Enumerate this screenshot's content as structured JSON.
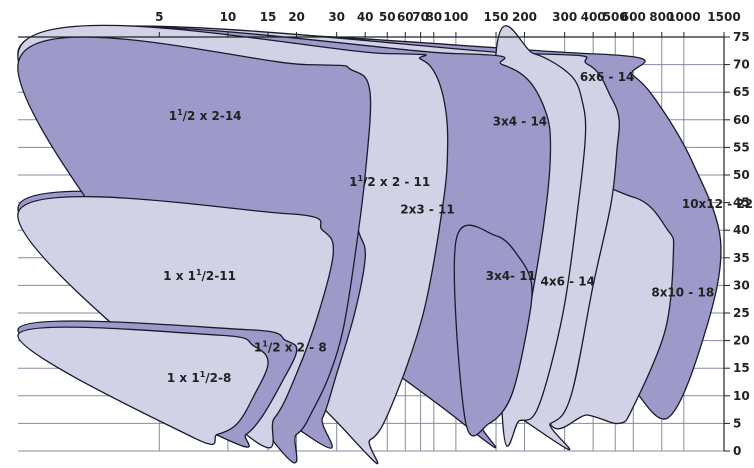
{
  "chart_data": {
    "type": "area",
    "x_axis": {
      "scale": "log",
      "position": "top",
      "ticks": [
        5,
        10,
        15,
        20,
        30,
        40,
        50,
        60,
        70,
        80,
        100,
        150,
        200,
        300,
        400,
        500,
        600,
        800,
        1000,
        1500
      ],
      "tick_labels": [
        "5",
        "10",
        "15",
        "20",
        "30",
        "40",
        "50",
        "60",
        "70",
        "80",
        "100",
        "150",
        "200",
        "300",
        "400",
        "500",
        "600",
        "800",
        "1000",
        "1500"
      ]
    },
    "y_axis": {
      "position": "right",
      "range": [
        0,
        75
      ],
      "ticks": [
        0,
        5,
        10,
        15,
        20,
        25,
        30,
        35,
        40,
        45,
        50,
        55,
        60,
        65,
        70,
        75
      ],
      "tick_labels": [
        "0",
        "5",
        "10",
        "15",
        "20",
        "25",
        "30",
        "35",
        "40",
        "45",
        "50",
        "55",
        "60",
        "65",
        "70",
        "75"
      ]
    },
    "grid": true,
    "colors": {
      "light": "#d1d2e6",
      "dark": "#9d9ac9",
      "outline": "#1a1a2e",
      "grid": "#8a8aa0"
    },
    "regions": [
      {
        "label": "10x12-22",
        "shade": "dark",
        "outline": [
          [
            1.2,
            72
          ],
          [
            380,
            72
          ],
          [
            600,
            68
          ],
          [
            800,
            62
          ],
          [
            1100,
            52
          ],
          [
            1450,
            38
          ],
          [
            1250,
            22
          ],
          [
            850,
            6
          ],
          [
            550,
            13
          ],
          [
            380,
            16
          ],
          [
            250,
            18
          ]
        ]
      },
      {
        "label": "8x10-18",
        "shade": "light",
        "outline": [
          [
            260,
            46
          ],
          [
            600,
            46
          ],
          [
            850,
            40
          ],
          [
            900,
            36
          ],
          [
            830,
            22
          ],
          [
            600,
            8
          ],
          [
            520,
            5
          ],
          [
            380,
            6.5
          ],
          [
            250,
            7
          ]
        ]
      },
      {
        "label": "6x6-14",
        "shade": "light",
        "outline": [
          [
            1.2,
            72
          ],
          [
            200,
            72
          ],
          [
            380,
            70
          ],
          [
            480,
            64
          ],
          [
            520,
            60
          ],
          [
            510,
            55
          ],
          [
            480,
            45
          ],
          [
            400,
            30
          ],
          [
            320,
            10
          ],
          [
            260,
            5
          ],
          [
            200,
            5.5
          ]
        ]
      },
      {
        "label": "4x6-14",
        "shade": "light",
        "outline": [
          [
            150,
            72
          ],
          [
            220,
            72
          ],
          [
            320,
            68
          ],
          [
            360,
            63
          ],
          [
            370,
            57
          ],
          [
            345,
            45
          ],
          [
            295,
            25
          ],
          [
            230,
            8
          ],
          [
            190,
            5.5
          ],
          [
            160,
            6
          ]
        ]
      },
      {
        "label": "3x4-14",
        "shade": "dark",
        "outline": [
          [
            1.2,
            72
          ],
          [
            100,
            72
          ],
          [
            160,
            70
          ],
          [
            210,
            67
          ],
          [
            250,
            61
          ],
          [
            260,
            55
          ],
          [
            250,
            45
          ],
          [
            220,
            30
          ],
          [
            175,
            10
          ],
          [
            130,
            5
          ],
          [
            100,
            6
          ]
        ]
      },
      {
        "label": "3x4-11",
        "shade": "dark",
        "outline": [
          [
            100,
            38
          ],
          [
            150,
            39
          ],
          [
            190,
            35
          ],
          [
            215,
            30
          ],
          [
            205,
            22
          ],
          [
            175,
            10
          ],
          [
            140,
            5
          ],
          [
            110,
            5.5
          ]
        ]
      },
      {
        "label": "2x3-11",
        "shade": "light",
        "outline": [
          [
            1.2,
            72
          ],
          [
            50,
            72
          ],
          [
            70,
            71
          ],
          [
            82,
            68
          ],
          [
            90,
            62
          ],
          [
            92,
            55
          ],
          [
            88,
            45
          ],
          [
            72,
            25
          ],
          [
            52,
            8
          ],
          [
            42,
            2
          ],
          [
            33,
            3.5
          ]
        ]
      },
      {
        "label": "1¹/₂x2-11",
        "shade": "dark",
        "outline": [
          [
            1.2,
            44
          ],
          [
            25,
            44
          ],
          [
            34,
            43
          ],
          [
            38,
            39
          ],
          [
            40,
            35
          ],
          [
            36,
            25
          ],
          [
            30,
            14
          ],
          [
            26,
            6
          ],
          [
            22,
            3
          ]
        ]
      },
      {
        "label": "1¹/₂x2-14",
        "shade": "dark",
        "outline": [
          [
            1.2,
            70
          ],
          [
            22,
            70
          ],
          [
            35,
            69
          ],
          [
            42,
            65
          ],
          [
            40,
            50
          ],
          [
            36,
            35
          ],
          [
            32,
            22
          ],
          [
            28,
            14
          ],
          [
            24,
            8
          ],
          [
            20,
            3
          ],
          [
            15,
            3
          ]
        ]
      },
      {
        "label": "1 x 1¹/₂-11",
        "shade": "light",
        "outline": [
          [
            1.2,
            43
          ],
          [
            18,
            43
          ],
          [
            26,
            40
          ],
          [
            29,
            36
          ],
          [
            25,
            25
          ],
          [
            20,
            14
          ],
          [
            16,
            6
          ],
          [
            12,
            3
          ]
        ]
      },
      {
        "label": "1¹/₂x2-8",
        "shade": "dark",
        "outline": [
          [
            1.2,
            22
          ],
          [
            12,
            22
          ],
          [
            18,
            20
          ],
          [
            20,
            18
          ],
          [
            17,
            12
          ],
          [
            14,
            6
          ],
          [
            12,
            3
          ],
          [
            10,
            2
          ]
        ]
      },
      {
        "label": "1 x 1¹/₂-8",
        "shade": "light",
        "outline": [
          [
            1.2,
            21
          ],
          [
            9,
            21
          ],
          [
            13,
            19
          ],
          [
            15,
            16
          ],
          [
            13,
            10
          ],
          [
            11,
            5
          ],
          [
            9,
            3
          ],
          [
            7,
            2.5
          ]
        ]
      }
    ],
    "labels": [
      {
        "base": "1",
        "sup": "1",
        "rest": "/2 x 2-14",
        "x": 5.5,
        "y": 60
      },
      {
        "base": "3",
        "sup": "",
        "rest": "x4 - 14",
        "x": 145,
        "y": 59
      },
      {
        "base": "6",
        "sup": "",
        "rest": "x6 - 14",
        "x": 350,
        "y": 67
      },
      {
        "base": "1",
        "sup": "1",
        "rest": "/2 x 2 - 11",
        "x": 34,
        "y": 48
      },
      {
        "base": "2",
        "sup": "",
        "rest": "x3 - 11",
        "x": 57,
        "y": 43
      },
      {
        "base": "10",
        "sup": "",
        "rest": "x12 - 22",
        "x": 980,
        "y": 44
      },
      {
        "base": "1 x 1",
        "sup": "1",
        "rest": "/2-11",
        "x": 5.2,
        "y": 31
      },
      {
        "base": "3",
        "sup": "",
        "rest": "x4- 11",
        "x": 135,
        "y": 31
      },
      {
        "base": "4",
        "sup": "",
        "rest": "x6 - 14",
        "x": 235,
        "y": 30
      },
      {
        "base": "8",
        "sup": "",
        "rest": "x10 - 18",
        "x": 720,
        "y": 28
      },
      {
        "base": "1",
        "sup": "1",
        "rest": "/2 x 2 - 8",
        "x": 13,
        "y": 18
      },
      {
        "base": "1 x 1",
        "sup": "1",
        "rest": "/2-8",
        "x": 5.4,
        "y": 12.5
      }
    ]
  }
}
